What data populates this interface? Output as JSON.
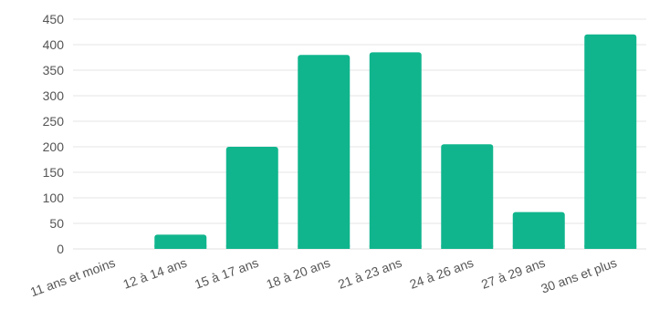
{
  "chart_data": {
    "type": "bar",
    "title": "",
    "xlabel": "",
    "ylabel": "",
    "categories": [
      "11 ans et moins",
      "12 à 14 ans",
      "15 à 17 ans",
      "18 à 20 ans",
      "21 à 23 ans",
      "24 à 26 ans",
      "27 à 29 ans",
      "30 ans et plus"
    ],
    "values": [
      0,
      28,
      200,
      380,
      385,
      205,
      72,
      420
    ],
    "ylim": [
      0,
      450
    ],
    "yticks": [
      0,
      50,
      100,
      150,
      200,
      250,
      300,
      350,
      400,
      450
    ],
    "grid": true,
    "bar_color": "#10b58d",
    "grid_color": "#e6e6e6",
    "label_color": "#555555"
  }
}
